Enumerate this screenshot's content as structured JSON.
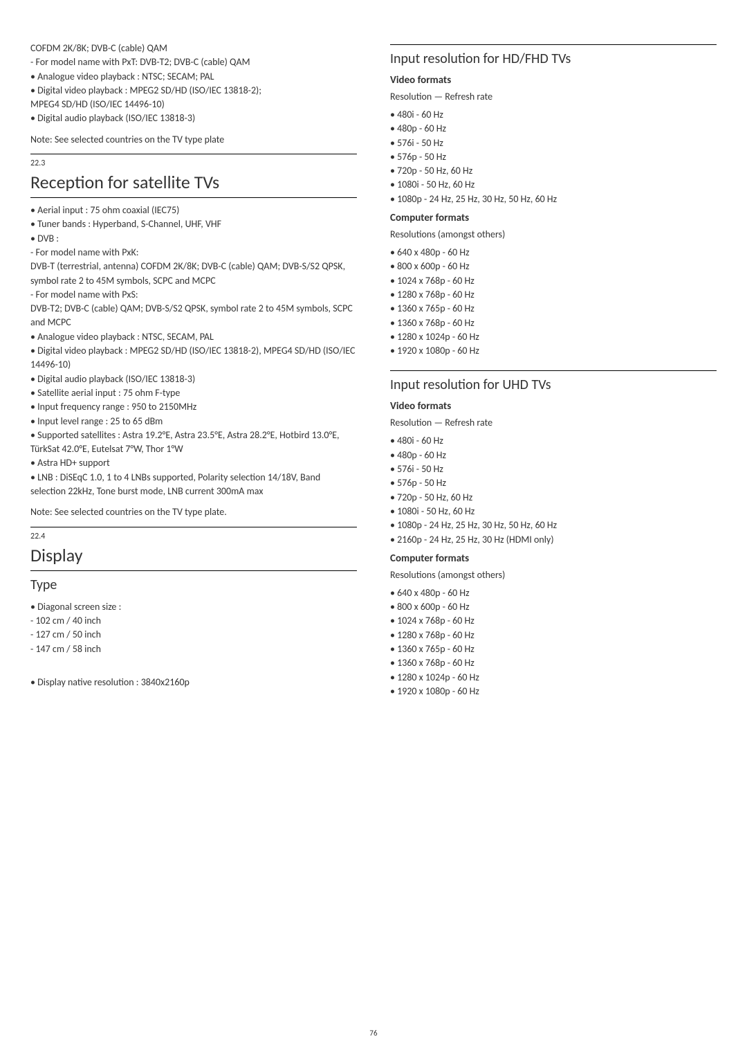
{
  "leftCol": {
    "orphan_lines": [
      "COFDM 2K/8K; DVB-C (cable) QAM",
      "- For model name with PxT: DVB-T2; DVB-C (cable) QAM",
      "• Analogue video playback : NTSC; SECAM; PAL",
      "• Digital video playback : MPEG2 SD/HD (ISO/IEC 13818-2);",
      "MPEG4 SD/HD (ISO/IEC 14496-10)",
      "• Digital audio playback (ISO/IEC 13818-3)"
    ],
    "orphan_note": "Note: See selected countries on the TV type plate",
    "sec223_no": "22.3",
    "sec223_title": "Reception for satellite TVs",
    "sec223_lines": [
      "• Aerial input : 75 ohm coaxial (IEC75)",
      "• Tuner bands : Hyperband, S-Channel, UHF, VHF",
      "• DVB :",
      "- For model name with PxK:",
      "DVB-T (terrestrial, antenna) COFDM 2K/8K; DVB-C (cable) QAM; DVB-S/S2 QPSK, symbol rate 2 to 45M symbols, SCPC and MCPC",
      "- For model name with PxS:",
      "DVB-T2; DVB-C (cable) QAM; DVB-S/S2 QPSK, symbol rate 2 to 45M symbols, SCPC and MCPC",
      "• Analogue video playback : NTSC, SECAM, PAL",
      "• Digital video playback : MPEG2 SD/HD (ISO/IEC 13818-2), MPEG4 SD/HD (ISO/IEC 14496-10)",
      "• Digital audio playback (ISO/IEC 13818-3)",
      "• Satellite aerial input : 75 ohm F-type",
      "• Input frequency range : 950 to 2150MHz",
      "• Input level range : 25 to 65 dBm",
      "• Supported satellites : Astra 19.2°E, Astra 23.5°E, Astra 28.2°E, Hotbird 13.0°E, TürkSat 42.0°E, Eutelsat 7°W, Thor 1°W",
      "• Astra HD+ support",
      "• LNB : DiSEqC 1.0, 1 to 4 LNBs supported, Polarity selection 14/18V, Band selection 22kHz, Tone burst mode, LNB current 300mA max"
    ],
    "sec223_note": "Note: See selected countries on the TV type plate.",
    "sec224_no": "22.4",
    "sec224_title": "Display",
    "type_head": "Type",
    "type_lines": [
      "• Diagonal screen size :",
      "- 102 cm / 40 inch",
      "- 127 cm / 50 inch",
      "- 147 cm / 58 inch"
    ],
    "native_line": "• Display native resolution : 3840x2160p"
  },
  "rightCol": {
    "hdfhd_head": "Input resolution for HD/FHD TVs",
    "video_formats_label": "Video formats",
    "refresh_label": "Resolution — Refresh rate",
    "hdfhd_video": [
      "• 480i - 60 Hz",
      "• 480p - 60 Hz",
      "• 576i - 50 Hz",
      "• 576p - 50 Hz",
      "• 720p - 50 Hz, 60 Hz",
      "• 1080i - 50 Hz, 60 Hz",
      "• 1080p - 24 Hz, 25 Hz, 30 Hz, 50 Hz, 60 Hz"
    ],
    "computer_formats_label": "Computer formats",
    "resolutions_label": "Resolutions (amongst others)",
    "hdfhd_comp": [
      "• 640 x 480p - 60 Hz",
      "• 800 x 600p - 60 Hz",
      "• 1024 x 768p - 60 Hz",
      "• 1280 x 768p - 60 Hz",
      "• 1360 x 765p - 60 Hz",
      "• 1360 x 768p - 60 Hz",
      "• 1280 x 1024p - 60 Hz",
      "• 1920 x 1080p - 60 Hz"
    ],
    "uhd_head": "Input resolution for UHD TVs",
    "uhd_video": [
      "• 480i - 60 Hz",
      "• 480p - 60 Hz",
      "• 576i - 50 Hz",
      "• 576p - 50 Hz",
      "• 720p - 50 Hz, 60 Hz",
      "• 1080i - 50 Hz, 60 Hz",
      "• 1080p - 24 Hz, 25 Hz, 30 Hz, 50 Hz, 60 Hz",
      "• 2160p - 24 Hz, 25 Hz, 30 Hz (HDMI only)"
    ],
    "uhd_comp": [
      "• 640 x 480p - 60 Hz",
      "• 800 x 600p - 60 Hz",
      "• 1024 x 768p - 60 Hz",
      "• 1280 x 768p - 60 Hz",
      "• 1360 x 765p - 60 Hz",
      "• 1360 x 768p - 60 Hz",
      "• 1280 x 1024p - 60 Hz",
      "• 1920 x 1080p - 60 Hz"
    ]
  },
  "page_number": "76"
}
